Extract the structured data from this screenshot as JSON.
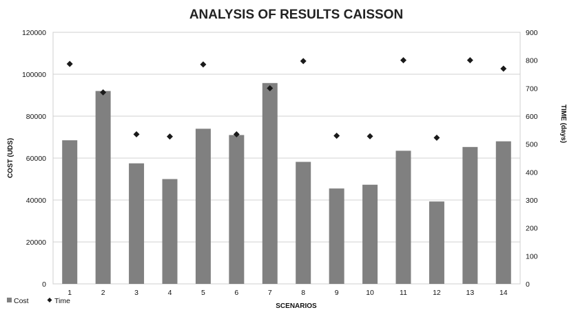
{
  "chart_data": {
    "type": "bar",
    "title": "ANALYSIS OF RESULTS CAISSON",
    "xlabel": "SCENARIOS",
    "ylabel": "COST (UDS)",
    "y2label": "TIME (days)",
    "categories": [
      "1",
      "2",
      "3",
      "4",
      "5",
      "6",
      "7",
      "8",
      "9",
      "10",
      "11",
      "12",
      "13",
      "14"
    ],
    "ylim": [
      0,
      120000
    ],
    "y2lim": [
      0,
      900
    ],
    "yticks": [
      "0",
      "20000",
      "40000",
      "60000",
      "80000",
      "100000",
      "120000"
    ],
    "y2ticks": [
      "0",
      "100",
      "200",
      "300",
      "400",
      "500",
      "600",
      "700",
      "800",
      "900"
    ],
    "grid": "horizontal",
    "legend_position": "bottom-left",
    "series": [
      {
        "name": "Cost",
        "type": "bar",
        "axis": "left",
        "color": "#808080",
        "values": [
          68500,
          92000,
          57500,
          50000,
          74000,
          71000,
          95800,
          58200,
          45500,
          47300,
          63500,
          39300,
          65300,
          68000
        ]
      },
      {
        "name": "Time",
        "type": "scatter",
        "axis": "right",
        "marker": "diamond",
        "color": "#1a1a1a",
        "values": [
          787,
          685,
          535,
          527,
          785,
          535,
          700,
          797,
          530,
          528,
          800,
          523,
          800,
          770
        ]
      }
    ]
  }
}
